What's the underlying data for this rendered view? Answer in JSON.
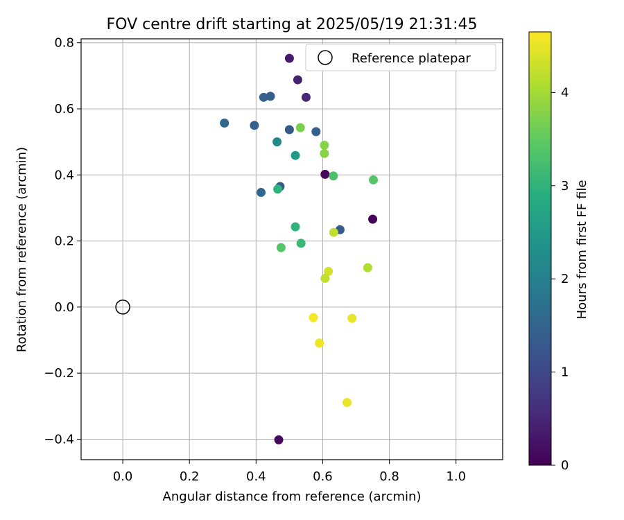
{
  "chart_data": {
    "type": "scatter",
    "title": "FOV centre drift starting at 2025/05/19 21:31:45",
    "xlabel": "Angular distance from reference (arcmin)",
    "ylabel": "Rotation from reference (arcmin)",
    "xlim": [
      -0.125,
      1.14
    ],
    "ylim": [
      -0.462,
      0.812
    ],
    "xticks": [
      0.0,
      0.2,
      0.4,
      0.6,
      0.8,
      1.0
    ],
    "xtick_labels": [
      "0.0",
      "0.2",
      "0.4",
      "0.6",
      "0.8",
      "1.0"
    ],
    "yticks": [
      -0.4,
      -0.2,
      0.0,
      0.2,
      0.4,
      0.6,
      0.8
    ],
    "ytick_labels": [
      "−0.4",
      "−0.2",
      "0.0",
      "0.2",
      "0.4",
      "0.6",
      "0.8"
    ],
    "grid": true,
    "legend": {
      "placement": "top-right",
      "entries": [
        "Reference platepar"
      ]
    },
    "reference_point": {
      "x": 0.0,
      "y": 0.0
    },
    "colorbar": {
      "label": "Hours from first FF file",
      "min": 0,
      "max": 4.65,
      "ticks": [
        0,
        1,
        2,
        3,
        4
      ],
      "tick_labels": [
        "0",
        "1",
        "2",
        "3",
        "4"
      ],
      "colormap": "viridis"
    },
    "points": [
      {
        "x": 0.5,
        "y": 0.753,
        "h": 0.35
      },
      {
        "x": 0.525,
        "y": 0.688,
        "h": 0.45
      },
      {
        "x": 0.55,
        "y": 0.635,
        "h": 0.5
      },
      {
        "x": 0.423,
        "y": 0.635,
        "h": 1.45
      },
      {
        "x": 0.443,
        "y": 0.638,
        "h": 1.35
      },
      {
        "x": 0.305,
        "y": 0.557,
        "h": 1.55
      },
      {
        "x": 0.395,
        "y": 0.55,
        "h": 1.4
      },
      {
        "x": 0.5,
        "y": 0.537,
        "h": 1.3
      },
      {
        "x": 0.58,
        "y": 0.531,
        "h": 1.4
      },
      {
        "x": 0.533,
        "y": 0.543,
        "h": 3.7
      },
      {
        "x": 0.463,
        "y": 0.5,
        "h": 2.2
      },
      {
        "x": 0.605,
        "y": 0.49,
        "h": 3.8
      },
      {
        "x": 0.605,
        "y": 0.465,
        "h": 3.8
      },
      {
        "x": 0.518,
        "y": 0.459,
        "h": 2.5
      },
      {
        "x": 0.607,
        "y": 0.402,
        "h": 0.1
      },
      {
        "x": 0.632,
        "y": 0.397,
        "h": 3.3
      },
      {
        "x": 0.752,
        "y": 0.385,
        "h": 3.4
      },
      {
        "x": 0.472,
        "y": 0.365,
        "h": 1.3
      },
      {
        "x": 0.465,
        "y": 0.357,
        "h": 3.0
      },
      {
        "x": 0.415,
        "y": 0.347,
        "h": 1.5
      },
      {
        "x": 0.75,
        "y": 0.266,
        "h": 0.05
      },
      {
        "x": 0.518,
        "y": 0.243,
        "h": 3.0
      },
      {
        "x": 0.652,
        "y": 0.234,
        "h": 1.3
      },
      {
        "x": 0.633,
        "y": 0.226,
        "h": 4.2
      },
      {
        "x": 0.535,
        "y": 0.193,
        "h": 3.1
      },
      {
        "x": 0.475,
        "y": 0.18,
        "h": 3.4
      },
      {
        "x": 0.617,
        "y": 0.108,
        "h": 4.35
      },
      {
        "x": 0.735,
        "y": 0.119,
        "h": 4.1
      },
      {
        "x": 0.607,
        "y": 0.087,
        "h": 4.2
      },
      {
        "x": 0.572,
        "y": -0.032,
        "h": 4.6
      },
      {
        "x": 0.688,
        "y": -0.034,
        "h": 4.5
      },
      {
        "x": 0.59,
        "y": -0.109,
        "h": 4.55
      },
      {
        "x": 0.673,
        "y": -0.289,
        "h": 4.5
      },
      {
        "x": 0.468,
        "y": -0.402,
        "h": 0.1
      }
    ]
  }
}
